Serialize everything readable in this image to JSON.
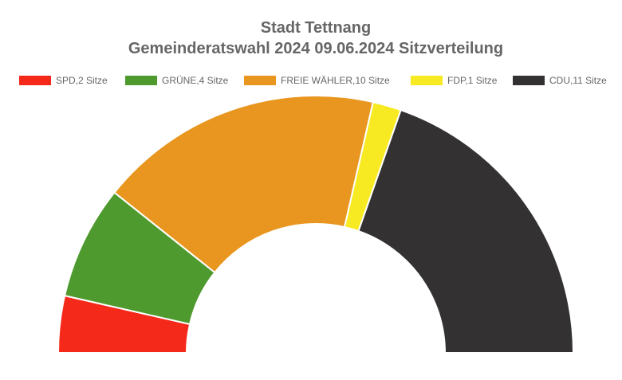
{
  "chart_data": {
    "type": "pie",
    "subtype": "half-donut",
    "title": [
      "Stadt Tettnang",
      "Gemeinderatswahl 2024 09.06.2024 Sitzverteilung"
    ],
    "legend_position": "top",
    "series": [
      {
        "name": "SPD,2 Sitze",
        "party": "SPD",
        "value": 2,
        "color": "#f5291a"
      },
      {
        "name": "GRÜNE,4 Sitze",
        "party": "GRÜNE",
        "value": 4,
        "color": "#4f9a2e"
      },
      {
        "name": "FREIE WÄHLER,10 Sitze",
        "party": "FREIE WÄHLER",
        "value": 10,
        "color": "#e8961f"
      },
      {
        "name": "FDP,1 Sitze",
        "party": "FDP",
        "value": 1,
        "color": "#f7ea23"
      },
      {
        "name": "CDU,11 Sitze",
        "party": "CDU",
        "value": 11,
        "color": "#333131"
      }
    ]
  }
}
